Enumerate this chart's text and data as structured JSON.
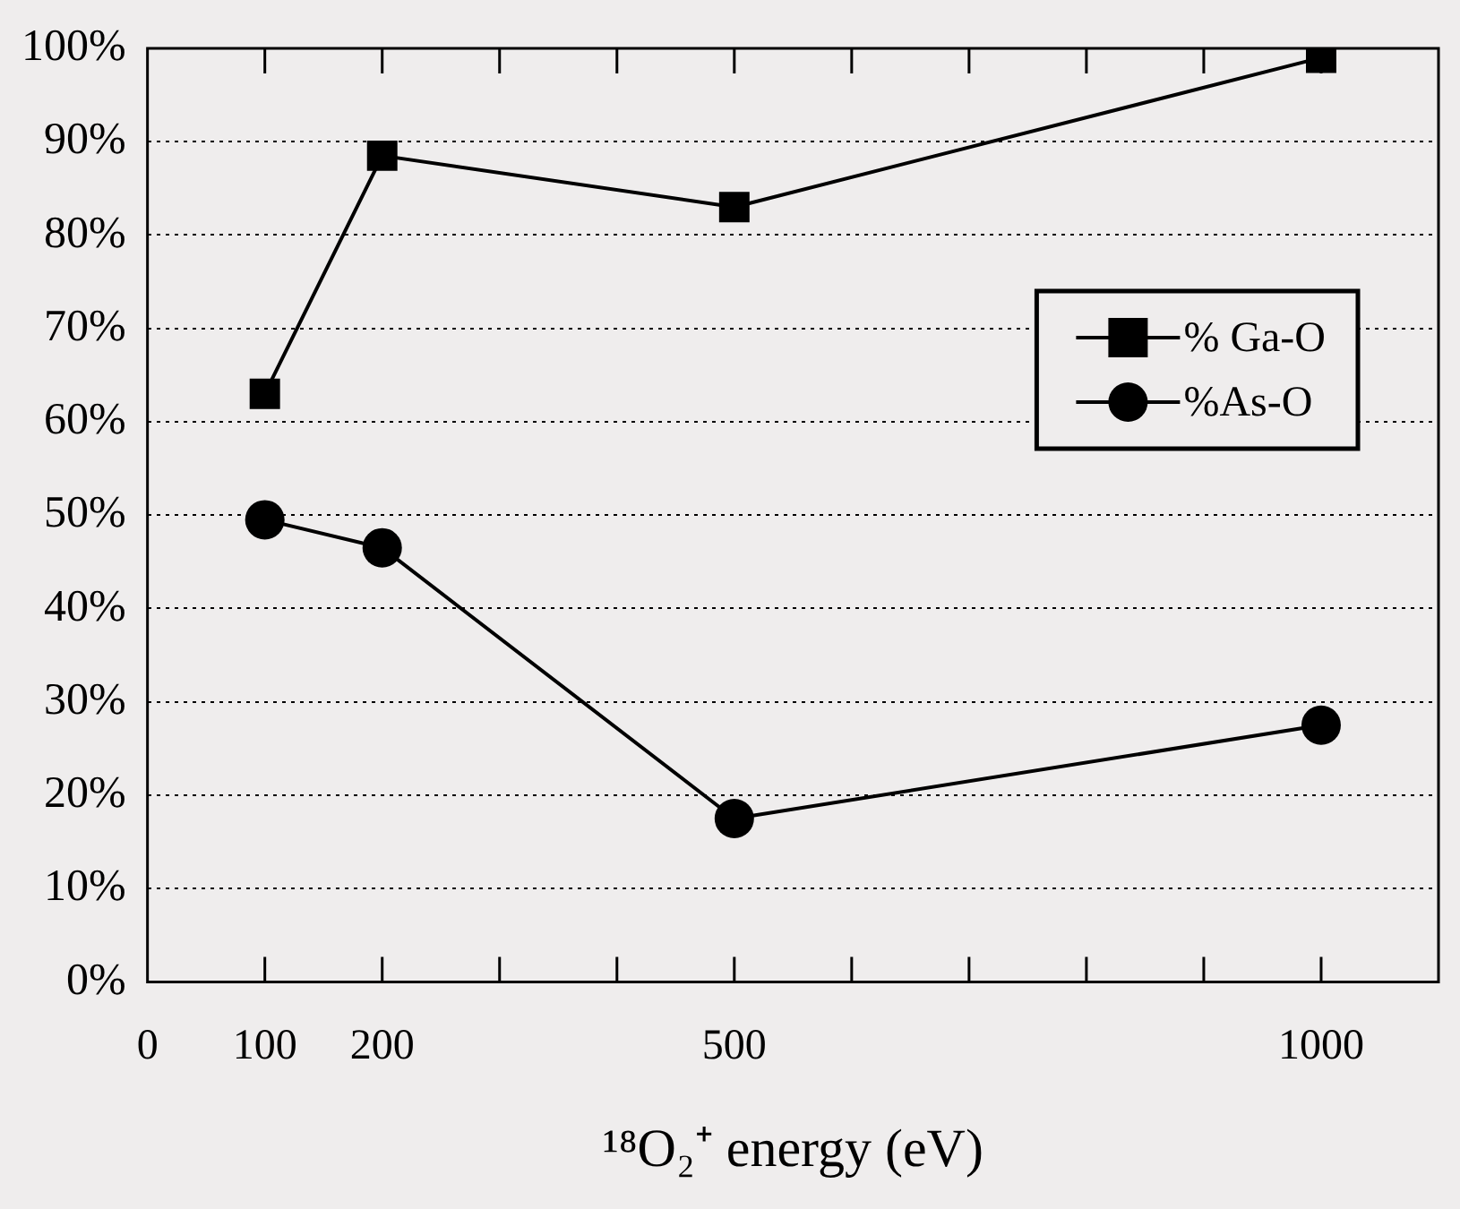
{
  "chart_data": {
    "type": "line",
    "xlabel": "¹⁸O₂⁺ energy (eV)",
    "xlim": [
      0,
      1100
    ],
    "xticks": [
      0,
      100,
      200,
      {
        "value": 300,
        "label": null
      },
      {
        "value": 400,
        "label": null
      },
      500,
      {
        "value": 600,
        "label": null
      },
      {
        "value": 700,
        "label": null
      },
      {
        "value": 800,
        "label": null
      },
      {
        "value": 900,
        "label": null
      },
      1000
    ],
    "ylim": [
      0,
      100
    ],
    "yticks": [
      {
        "value": 0,
        "label": "0%"
      },
      {
        "value": 10,
        "label": "10%"
      },
      {
        "value": 20,
        "label": "20%"
      },
      {
        "value": 30,
        "label": "30%"
      },
      {
        "value": 40,
        "label": "40%"
      },
      {
        "value": 50,
        "label": "50%"
      },
      {
        "value": 60,
        "label": "60%"
      },
      {
        "value": 70,
        "label": "70%"
      },
      {
        "value": 80,
        "label": "80%"
      },
      {
        "value": 90,
        "label": "90%"
      },
      {
        "value": 100,
        "label": "100%"
      }
    ],
    "x": [
      100,
      200,
      500,
      1000
    ],
    "series": [
      {
        "name": "% Ga-O",
        "color": "#000000",
        "marker": "square",
        "values": [
          63,
          88.5,
          83,
          99
        ]
      },
      {
        "name": "%As-O",
        "color": "#000000",
        "marker": "circle",
        "values": [
          49.5,
          46.5,
          17.5,
          27.5
        ]
      }
    ],
    "grid": "y",
    "line_style": "solid",
    "legend": "right"
  }
}
